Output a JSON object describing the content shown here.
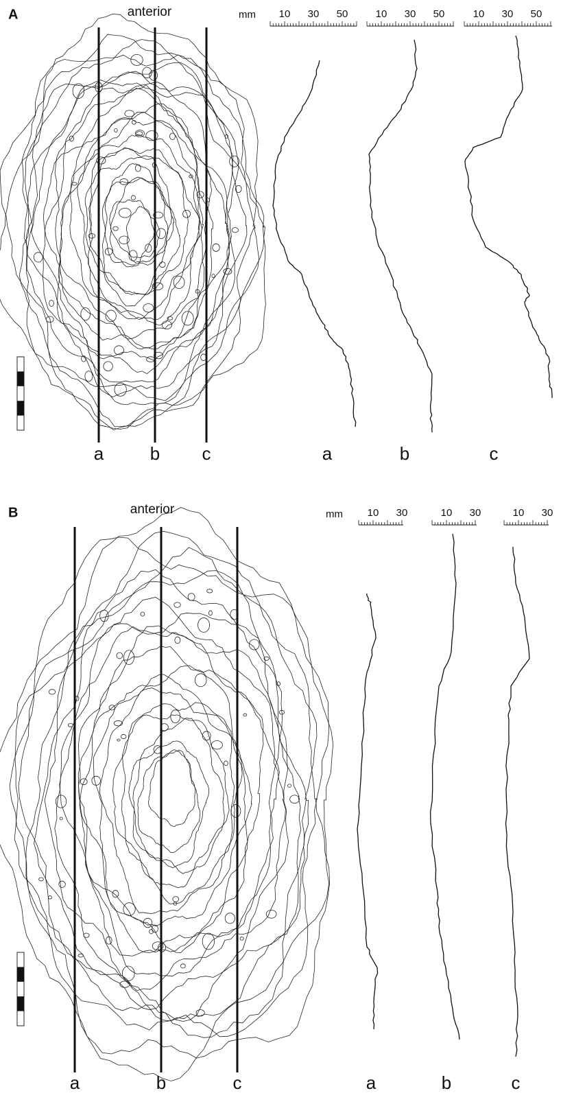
{
  "panels": [
    {
      "label": "A",
      "orientation": "anterior",
      "scale": {
        "unit": "mm",
        "rulers": [
          [
            10,
            30,
            50
          ],
          [
            10,
            30,
            50
          ],
          [
            10,
            30,
            50
          ]
        ]
      },
      "section_labels": [
        "a",
        "b",
        "c"
      ],
      "profile_labels": [
        "a",
        "b",
        "c"
      ]
    },
    {
      "label": "B",
      "orientation": "anterior",
      "scale": {
        "unit": "mm",
        "rulers": [
          [
            10,
            30
          ],
          [
            10,
            30
          ],
          [
            10,
            30
          ]
        ]
      },
      "section_labels": [
        "a",
        "b",
        "c"
      ],
      "profile_labels": [
        "a",
        "b",
        "c"
      ]
    }
  ]
}
